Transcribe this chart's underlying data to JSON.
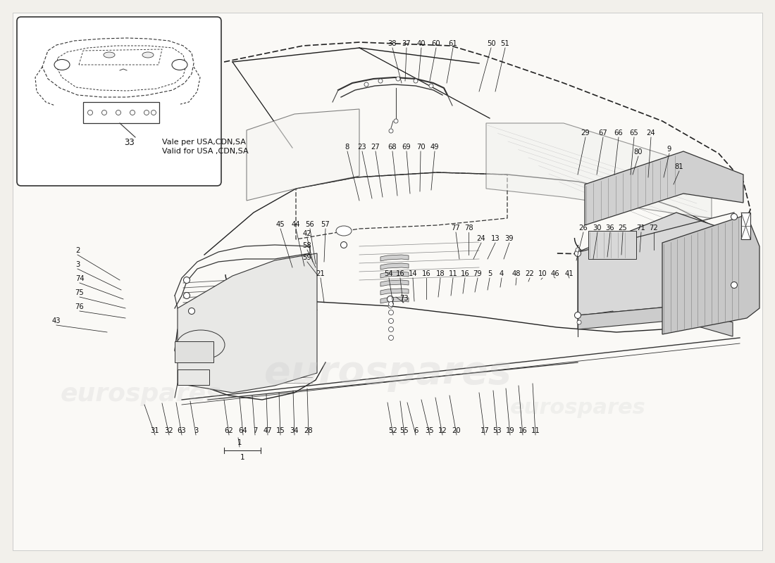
{
  "bg_color": "#f2f0eb",
  "paper_color": "#faf9f6",
  "line_color": "#1a1a1a",
  "dashed_color": "#333333",
  "label_color": "#111111",
  "watermark_color": "#c8c8c8",
  "inset_text1": "Vale per USA,CDN,SA",
  "inset_text2": "Valid for USA ,CDN,SA",
  "inset_label": "33",
  "annotations": [
    [
      557,
      68,
      570,
      118,
      "38"
    ],
    [
      577,
      68,
      575,
      115,
      "37"
    ],
    [
      598,
      68,
      594,
      112,
      "40"
    ],
    [
      619,
      68,
      610,
      115,
      "60"
    ],
    [
      643,
      68,
      634,
      118,
      "61"
    ],
    [
      697,
      68,
      680,
      130,
      "50"
    ],
    [
      717,
      68,
      703,
      130,
      "51"
    ],
    [
      831,
      195,
      820,
      248,
      "29"
    ],
    [
      856,
      195,
      847,
      248,
      "67"
    ],
    [
      878,
      195,
      872,
      248,
      "66"
    ],
    [
      900,
      195,
      895,
      248,
      "65"
    ],
    [
      924,
      195,
      920,
      252,
      "24"
    ],
    [
      950,
      218,
      942,
      252,
      "9"
    ],
    [
      964,
      243,
      956,
      262,
      "81"
    ],
    [
      906,
      222,
      898,
      248,
      "80"
    ],
    [
      493,
      215,
      510,
      285,
      "8"
    ],
    [
      514,
      215,
      528,
      282,
      "23"
    ],
    [
      533,
      215,
      543,
      280,
      "27"
    ],
    [
      557,
      215,
      564,
      278,
      "68"
    ],
    [
      577,
      215,
      582,
      275,
      "69"
    ],
    [
      597,
      215,
      596,
      272,
      "70"
    ],
    [
      617,
      215,
      612,
      270,
      "49"
    ],
    [
      110,
      362,
      170,
      398,
      "2"
    ],
    [
      110,
      382,
      172,
      412,
      "3"
    ],
    [
      113,
      402,
      175,
      425,
      "74"
    ],
    [
      113,
      422,
      178,
      438,
      "75"
    ],
    [
      113,
      442,
      178,
      452,
      "76"
    ],
    [
      80,
      462,
      152,
      472,
      "43"
    ],
    [
      398,
      325,
      415,
      380,
      "45"
    ],
    [
      420,
      325,
      432,
      378,
      "44"
    ],
    [
      440,
      325,
      448,
      375,
      "56"
    ],
    [
      462,
      325,
      460,
      372,
      "57"
    ],
    [
      436,
      338,
      444,
      372,
      "42"
    ],
    [
      436,
      355,
      448,
      380,
      "58"
    ],
    [
      436,
      372,
      450,
      390,
      "59"
    ],
    [
      552,
      395,
      558,
      432,
      "54"
    ],
    [
      568,
      395,
      572,
      430,
      "16"
    ],
    [
      586,
      395,
      588,
      428,
      "14"
    ],
    [
      605,
      395,
      605,
      425,
      "16"
    ],
    [
      625,
      395,
      622,
      422,
      "18"
    ],
    [
      643,
      395,
      640,
      420,
      "11"
    ],
    [
      660,
      395,
      657,
      417,
      "16"
    ],
    [
      678,
      395,
      674,
      415,
      "79"
    ],
    [
      695,
      395,
      692,
      412,
      "5"
    ],
    [
      712,
      395,
      710,
      408,
      "4"
    ],
    [
      733,
      395,
      732,
      405,
      "48"
    ],
    [
      752,
      395,
      750,
      400,
      "22"
    ],
    [
      770,
      395,
      768,
      397,
      "10"
    ],
    [
      788,
      395,
      786,
      393,
      "46"
    ],
    [
      808,
      395,
      806,
      390,
      "41"
    ],
    [
      828,
      330,
      818,
      370,
      "26"
    ],
    [
      848,
      330,
      842,
      368,
      "30"
    ],
    [
      866,
      330,
      862,
      365,
      "36"
    ],
    [
      884,
      330,
      882,
      362,
      "25"
    ],
    [
      910,
      330,
      908,
      358,
      "71"
    ],
    [
      928,
      330,
      928,
      355,
      "72"
    ],
    [
      647,
      330,
      652,
      368,
      "77"
    ],
    [
      665,
      330,
      665,
      362,
      "78"
    ],
    [
      683,
      345,
      672,
      368,
      "24"
    ],
    [
      703,
      345,
      692,
      368,
      "13"
    ],
    [
      723,
      345,
      715,
      368,
      "39"
    ],
    [
      455,
      395,
      460,
      430,
      "21"
    ],
    [
      220,
      618,
      205,
      575,
      "31"
    ],
    [
      240,
      618,
      230,
      573,
      "32"
    ],
    [
      258,
      618,
      250,
      572,
      "63"
    ],
    [
      278,
      618,
      270,
      570,
      "3"
    ],
    [
      325,
      618,
      318,
      568,
      "62"
    ],
    [
      345,
      618,
      340,
      565,
      "64"
    ],
    [
      362,
      618,
      358,
      562,
      "7"
    ],
    [
      380,
      618,
      378,
      560,
      "47"
    ],
    [
      398,
      618,
      396,
      558,
      "15"
    ],
    [
      418,
      618,
      416,
      555,
      "34"
    ],
    [
      438,
      618,
      436,
      552,
      "28"
    ],
    [
      340,
      635,
      338,
      622,
      "1"
    ],
    [
      590,
      618,
      578,
      572,
      "6"
    ],
    [
      610,
      618,
      598,
      568,
      "35"
    ],
    [
      628,
      618,
      618,
      565,
      "12"
    ],
    [
      648,
      618,
      638,
      562,
      "20"
    ],
    [
      688,
      618,
      680,
      558,
      "17"
    ],
    [
      706,
      618,
      700,
      555,
      "53"
    ],
    [
      724,
      618,
      718,
      552,
      "19"
    ],
    [
      742,
      618,
      736,
      548,
      "16"
    ],
    [
      760,
      618,
      756,
      545,
      "11"
    ],
    [
      558,
      618,
      550,
      572,
      "52"
    ],
    [
      574,
      618,
      568,
      570,
      "55"
    ],
    [
      573,
      430,
      562,
      422,
      "73"
    ]
  ]
}
